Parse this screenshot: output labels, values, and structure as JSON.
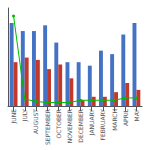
{
  "chart_data": {
    "type": "bar",
    "categories": [
      "JUNE",
      "JULY",
      "AUGUST",
      "SEPTEMBER",
      "OCTOBER",
      "NOVEMBER",
      "DECEMBER",
      "JANUARY",
      "FEBRUARY",
      "MARCH",
      "APRIL",
      "MAY"
    ],
    "series": [
      {
        "type": "bar",
        "color": "#4472C4",
        "values": [
          72,
          65,
          65,
          70,
          55,
          38,
          38,
          35,
          48,
          45,
          62,
          72
        ]
      },
      {
        "type": "bar",
        "color": "#C0392B",
        "values": [
          38,
          42,
          40,
          32,
          36,
          24,
          5,
          8,
          8,
          12,
          20,
          14
        ]
      },
      {
        "type": "line",
        "color": "#00BB00",
        "marker": "o",
        "axis": "y2",
        "values": [
          78,
          6,
          4,
          3,
          3,
          3,
          5,
          5,
          5,
          5,
          7,
          7
        ]
      }
    ],
    "ylim": [
      0,
      85
    ],
    "yticks": [],
    "y2lim": [
      0,
      85
    ],
    "y2ticks": [],
    "grid": false,
    "tick_labels": "x"
  }
}
